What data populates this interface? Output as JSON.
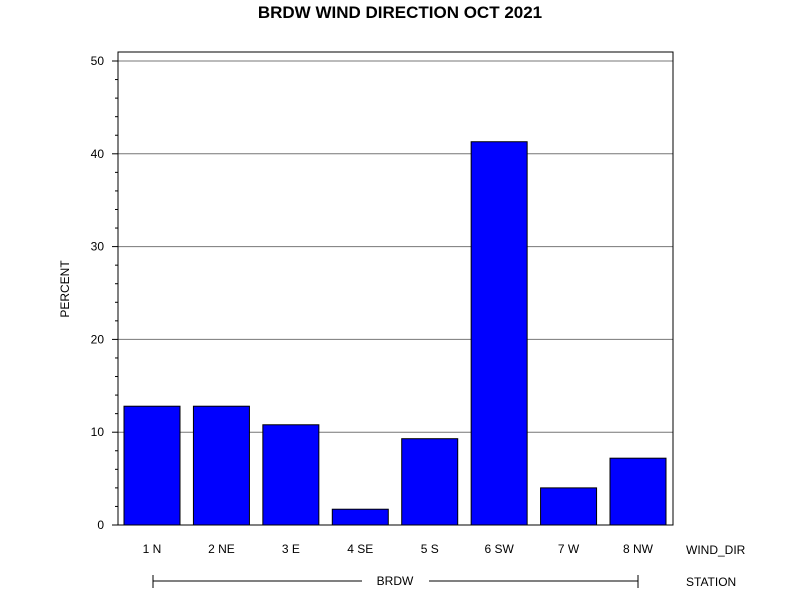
{
  "chart_data": {
    "type": "bar",
    "title": "BRDW WIND DIRECTION OCT 2021",
    "ylabel": "PERCENT",
    "xlabel": "WIND_DIR",
    "group_axis_label": "STATION",
    "group_label": "BRDW",
    "categories": [
      "1 N",
      "2 NE",
      "3 E",
      "4 SE",
      "5 S",
      "6 SW",
      "7 W",
      "8 NW"
    ],
    "values": [
      12.8,
      12.8,
      10.8,
      1.7,
      9.3,
      41.3,
      4.0,
      7.2
    ],
    "ylim": [
      0,
      50
    ],
    "yticks": [
      0,
      10,
      20,
      30,
      40,
      50
    ],
    "grid": true,
    "bar_color": "#0000ff"
  }
}
